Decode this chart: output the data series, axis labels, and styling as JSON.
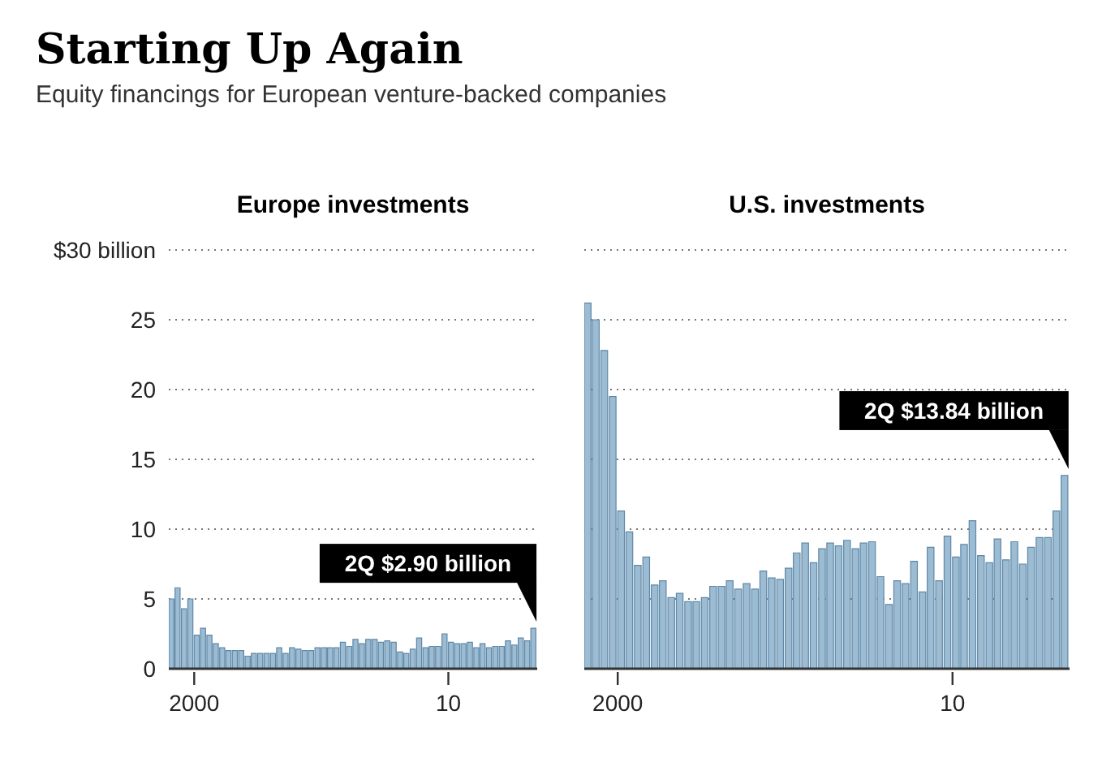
{
  "chart_data": [
    {
      "type": "other",
      "title": "Starting Up Again",
      "subtitle": "Equity financings for European venture-backed companies"
    },
    {
      "type": "bar",
      "title": "Europe investments",
      "x": [
        "1999-02-15",
        "1999-05-15",
        "1999-08-15",
        "1999-11-15",
        "2000-02-15",
        "2000-05-15",
        "2000-08-15",
        "2000-11-15",
        "2001-02-15",
        "2001-05-15",
        "2001-08-15",
        "2001-11-15",
        "2002-02-15",
        "2002-05-15",
        "2002-08-15",
        "2002-11-15",
        "2003-02-15",
        "2003-05-15",
        "2003-08-15",
        "2003-11-15",
        "2004-02-15",
        "2004-05-15",
        "2004-08-15",
        "2004-11-15",
        "2005-02-15",
        "2005-05-15",
        "2005-08-15",
        "2005-11-15",
        "2006-02-15",
        "2006-05-15",
        "2006-08-15",
        "2006-11-15",
        "2007-02-15",
        "2007-05-15",
        "2007-08-15",
        "2007-11-15",
        "2008-02-15",
        "2008-05-15",
        "2008-08-15",
        "2008-11-15",
        "2009-02-15",
        "2009-05-15",
        "2009-08-15",
        "2009-11-15",
        "2010-02-15",
        "2010-05-15",
        "2010-08-15",
        "2010-11-15",
        "2011-02-15",
        "2011-05-15",
        "2011-08-15",
        "2011-11-15",
        "2012-02-15",
        "2012-05-15",
        "2012-08-15",
        "2012-11-15",
        "2013-02-15",
        "2013-05-15"
      ],
      "values": [
        5.0,
        5.8,
        4.3,
        5.0,
        2.4,
        2.9,
        2.4,
        1.8,
        1.5,
        1.3,
        1.3,
        1.3,
        0.9,
        1.1,
        1.1,
        1.1,
        1.1,
        1.5,
        1.1,
        1.5,
        1.4,
        1.3,
        1.3,
        1.5,
        1.5,
        1.5,
        1.5,
        1.9,
        1.6,
        2.1,
        1.8,
        2.1,
        2.1,
        1.9,
        2.0,
        1.9,
        1.2,
        1.1,
        1.4,
        2.2,
        1.5,
        1.6,
        1.6,
        2.5,
        1.9,
        1.8,
        1.8,
        1.9,
        1.5,
        1.8,
        1.5,
        1.6,
        1.6,
        2.0,
        1.7,
        2.2,
        2.0,
        2.9
      ],
      "color": "#9bbcd3",
      "xlim": [
        "1999-01-01",
        "2013-07-01"
      ],
      "xticks": [
        {
          "value": "2000-01-01",
          "label": "2000"
        },
        {
          "value": "2010-01-01",
          "label": "10"
        }
      ],
      "ylim": [
        0,
        30
      ],
      "yticks": [
        0,
        5,
        10,
        15,
        20,
        25,
        {
          "value": 30,
          "label": "$30 billion"
        }
      ],
      "grid": "y",
      "annotations": [
        {
          "text": "2Q $2.90 billion",
          "x": "2013-05-15",
          "y": 2.9
        }
      ]
    },
    {
      "type": "bar",
      "title": "U.S. investments",
      "x": [
        "1999-02-15",
        "1999-05-15",
        "1999-08-15",
        "1999-11-15",
        "2000-02-15",
        "2000-05-15",
        "2000-08-15",
        "2000-11-15",
        "2001-02-15",
        "2001-05-15",
        "2001-08-15",
        "2001-11-15",
        "2002-02-15",
        "2002-05-15",
        "2002-08-15",
        "2002-11-15",
        "2003-02-15",
        "2003-05-15",
        "2003-08-15",
        "2003-11-15",
        "2004-02-15",
        "2004-05-15",
        "2004-08-15",
        "2004-11-15",
        "2005-02-15",
        "2005-05-15",
        "2005-08-15",
        "2005-11-15",
        "2006-02-15",
        "2006-05-15",
        "2006-08-15",
        "2006-11-15",
        "2007-02-15",
        "2007-05-15",
        "2007-08-15",
        "2007-11-15",
        "2008-02-15",
        "2008-05-15",
        "2008-08-15",
        "2008-11-15",
        "2009-02-15",
        "2009-05-15",
        "2009-08-15",
        "2009-11-15",
        "2010-02-15",
        "2010-05-15",
        "2010-08-15",
        "2010-11-15",
        "2011-02-15",
        "2011-05-15",
        "2011-08-15",
        "2011-11-15",
        "2012-02-15",
        "2012-05-15",
        "2012-08-15",
        "2012-11-15",
        "2013-02-15",
        "2013-05-15"
      ],
      "values": [
        26.2,
        25,
        22.8,
        19.5,
        11.3,
        9.8,
        7.4,
        8.0,
        6.0,
        6.3,
        5.1,
        5.4,
        4.8,
        4.8,
        5.1,
        5.9,
        5.9,
        6.3,
        5.7,
        6.1,
        5.7,
        7.0,
        6.5,
        6.4,
        7.2,
        8.3,
        9.0,
        7.6,
        8.6,
        9.0,
        8.8,
        9.2,
        8.6,
        9.0,
        9.1,
        6.6,
        4.6,
        6.3,
        6.1,
        7.7,
        5.5,
        8.7,
        6.3,
        9.5,
        8.0,
        8.9,
        10.6,
        8.1,
        7.6,
        9.3,
        7.8,
        9.1,
        7.5,
        8.7,
        9.4,
        9.4,
        11.3,
        13.84
      ],
      "color": "#9bbcd3",
      "xlim": [
        "1999-01-01",
        "2013-07-01"
      ],
      "xticks": [
        {
          "value": "2000-01-01",
          "label": "2000"
        },
        {
          "value": "2010-01-01",
          "label": "10"
        }
      ],
      "ylim": [
        0,
        30
      ],
      "yticks": [
        0,
        5,
        10,
        15,
        20,
        25,
        30
      ],
      "grid": "y",
      "tick_labels": "x",
      "annotations": [
        {
          "text": "2Q $13.84 billion",
          "x": "2013-05-15",
          "y": 13.84
        }
      ]
    }
  ]
}
